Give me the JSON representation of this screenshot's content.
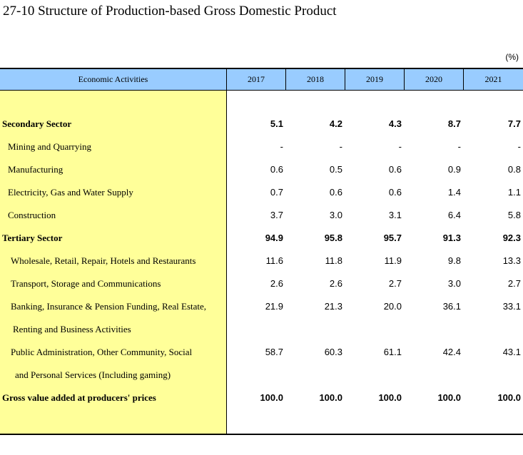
{
  "title": "27-10  Structure of Production-based Gross Domestic Product",
  "unit": "(%)",
  "table": {
    "label_header": "Economic Activities",
    "years": [
      "2017",
      "2018",
      "2019",
      "2020",
      "2021"
    ],
    "rows": [
      {
        "label": "Secondary Sector",
        "values": [
          "5.1",
          "4.2",
          "4.3",
          "8.7",
          "7.7"
        ],
        "bold": true
      },
      {
        "label": "Mining and Quarrying",
        "values": [
          "-",
          "-",
          "-",
          "-",
          "-"
        ],
        "bold": false
      },
      {
        "label": "Manufacturing",
        "values": [
          "0.6",
          "0.5",
          "0.6",
          "0.9",
          "0.8"
        ],
        "bold": false
      },
      {
        "label": "Electricity, Gas and Water Supply",
        "values": [
          "0.7",
          "0.6",
          "0.6",
          "1.4",
          "1.1"
        ],
        "bold": false
      },
      {
        "label": "Construction",
        "values": [
          "3.7",
          "3.0",
          "3.1",
          "6.4",
          "5.8"
        ],
        "bold": false
      },
      {
        "label": "Tertiary Sector",
        "values": [
          "94.9",
          "95.8",
          "95.7",
          "91.3",
          "92.3"
        ],
        "bold": true
      },
      {
        "label": "Wholesale, Retail, Repair, Hotels and Restaurants",
        "values": [
          "11.6",
          "11.8",
          "11.9",
          "9.8",
          "13.3"
        ],
        "bold": false
      },
      {
        "label": "Transport, Storage and Communications",
        "values": [
          "2.6",
          "2.6",
          "2.7",
          "3.0",
          "2.7"
        ],
        "bold": false
      },
      {
        "label": "Banking, Insurance & Pension Funding, Real Estate,",
        "values": [
          "21.9",
          "21.3",
          "20.0",
          "36.1",
          "33.1"
        ],
        "bold": false
      },
      {
        "label": "Renting and Business Activities",
        "values": [
          "",
          "",
          "",
          "",
          ""
        ],
        "bold": false
      },
      {
        "label": "Public Administration, Other Community, Social",
        "values": [
          "58.7",
          "60.3",
          "61.1",
          "42.4",
          "43.1"
        ],
        "bold": false
      },
      {
        "label": "and Personal Services (Including gaming)",
        "values": [
          "",
          "",
          "",
          "",
          ""
        ],
        "bold": false
      },
      {
        "label": "Gross value added at producers' prices",
        "values": [
          "100.0",
          "100.0",
          "100.0",
          "100.0",
          "100.0"
        ],
        "bold": true
      }
    ]
  }
}
